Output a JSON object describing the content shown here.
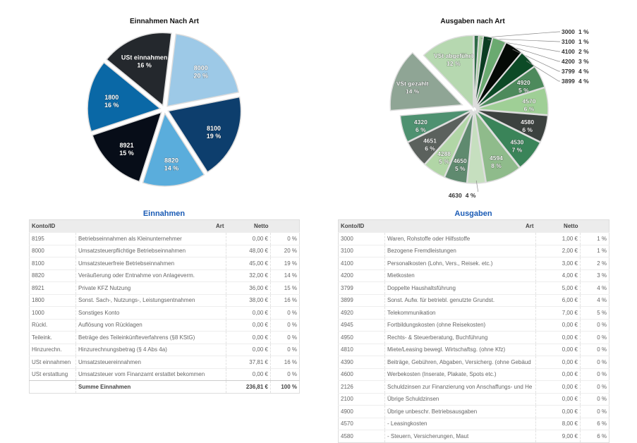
{
  "chart_data": [
    {
      "type": "pie",
      "title": "Einnahmen Nach Art",
      "labels": [
        "8000",
        "8100",
        "8820",
        "8921",
        "1800",
        "USt einnahmen"
      ],
      "values": [
        20,
        19,
        14,
        15,
        16,
        16
      ],
      "value_labels": [
        "20 %",
        "19 %",
        "14 %",
        "15 %",
        "16 %",
        "16 %"
      ],
      "colors": [
        "#9dc9e7",
        "#0d3e6d",
        "#5aaddc",
        "#070d18",
        "#0a68a6",
        "#24282d"
      ]
    },
    {
      "type": "pie",
      "title": "Ausgaben nach Art",
      "labels": [
        "3000",
        "3100",
        "4100",
        "4200",
        "3799",
        "3899",
        "4920",
        "4570",
        "4580",
        "4530",
        "4594",
        "4630",
        "4650",
        "4288",
        "4651",
        "4320",
        "VSt gezahlt",
        "VSt abgeführt"
      ],
      "values": [
        1,
        1,
        2,
        3,
        4,
        4,
        5,
        6,
        6,
        7,
        8,
        4,
        5,
        5,
        6,
        6,
        14,
        12
      ],
      "value_labels": [
        "1 %",
        "1 %",
        "2 %",
        "3 %",
        "4 %",
        "4 %",
        "5 %",
        "6 %",
        "6 %",
        "7 %",
        "8 %",
        "4 %",
        "5 %",
        "5 %",
        "6 %",
        "6 %",
        "14 %",
        "12 %"
      ],
      "colors": [
        "#2e6b46",
        "#a9cfa4",
        "#0b3d22",
        "#6aaa70",
        "#050a06",
        "#0c4a26",
        "#4d8a5c",
        "#9fcf96",
        "#3c423f",
        "#3a8459",
        "#8fbb8b",
        "#c6dfbf",
        "#5f8a6f",
        "#b1d6a6",
        "#5b615d",
        "#4e9170",
        "#8fa595",
        "#b6d8b0"
      ]
    }
  ],
  "einnahmen": {
    "title": "Einnahmen",
    "headers": [
      "Konto/ID",
      "Art",
      "Netto",
      ""
    ],
    "rows": [
      [
        "8195",
        "Betriebseinnahmen als Kleinunternehmer",
        "0,00 €",
        "0 %"
      ],
      [
        "8000",
        "Umsatzsteuerpflichtige Betriebseinnahmen",
        "48,00 €",
        "20 %"
      ],
      [
        "8100",
        "Umsatzsteuerfreie Betriebseinnahmen",
        "45,00 €",
        "19 %"
      ],
      [
        "8820",
        "Veräußerung oder Entnahme von Anlageverm.",
        "32,00 €",
        "14 %"
      ],
      [
        "8921",
        "Private KFZ Nutzung",
        "36,00 €",
        "15 %"
      ],
      [
        "1800",
        "Sonst. Sach-, Nutzungs-, Leistungsentnahmen",
        "38,00 €",
        "16 %"
      ],
      [
        "1000",
        "Sonstiges Konto",
        "0,00 €",
        "0 %"
      ],
      [
        "Rückl.",
        "Auflösung von Rücklagen",
        "0,00 €",
        "0 %"
      ],
      [
        "Teileink.",
        "Beträge des Teileinkünfteverfahrens (§8 KStG)",
        "0,00 €",
        "0 %"
      ],
      [
        "Hinzurechn.",
        "Hinzurechnungsbetrag (§ 4 Abs 4a)",
        "0,00 €",
        "0 %"
      ],
      [
        "USt einnahmen",
        "Umsatzsteuereinnahmen",
        "37,81 €",
        "16 %"
      ],
      [
        "USt erstattung",
        "Umsatzsteuer vom Finanzamt erstattet bekommen",
        "0,00 €",
        "0 %"
      ]
    ],
    "sum": [
      "",
      "Summe Einnahmen",
      "236,81 €",
      "100 %"
    ]
  },
  "ausgaben": {
    "title": "Ausgaben",
    "headers": [
      "Konto/ID",
      "Art",
      "Netto",
      ""
    ],
    "rows": [
      [
        "3000",
        "Waren, Rohstoffe oder Hilfsstoffe",
        "1,00 €",
        "1 %"
      ],
      [
        "3100",
        "Bezogene Fremdleistungen",
        "2,00 €",
        "1 %"
      ],
      [
        "4100",
        "Personalkosten (Lohn, Vers., Reisek. etc.)",
        "3,00 €",
        "2 %"
      ],
      [
        "4200",
        "Mietkosten",
        "4,00 €",
        "3 %"
      ],
      [
        "3799",
        "Doppelte Haushaltsführung",
        "5,00 €",
        "4 %"
      ],
      [
        "3899",
        "Sonst. Aufw. für betriebl. genutzte Grundst.",
        "6,00 €",
        "4 %"
      ],
      [
        "4920",
        "Telekommunikation",
        "7,00 €",
        "5 %"
      ],
      [
        "4945",
        "Fortbildungskosten (ohne Reisekosten)",
        "0,00 €",
        "0 %"
      ],
      [
        "4950",
        "Rechts- & Steuerberatung, Buchführung",
        "0,00 €",
        "0 %"
      ],
      [
        "4810",
        "Miete/Leasing bewegl. Wirtschaftsg. (ohne Kfz)",
        "0,00 €",
        "0 %"
      ],
      [
        "4390",
        "Beiträge, Gebühren, Abgaben, Versicherg. (ohne Gebäud",
        "0,00 €",
        "0 %"
      ],
      [
        "4600",
        "Werbekosten (Inserate, Plakate, Spots etc.)",
        "0,00 €",
        "0 %"
      ],
      [
        "2126",
        "Schuldzinsen zur Finanzierung von Anschaffungs- und He",
        "0,00 €",
        "0 %"
      ],
      [
        "2100",
        "Übrige Schuldzinsen",
        "0,00 €",
        "0 %"
      ],
      [
        "4900",
        "Übrige unbeschr. Betriebsausgaben",
        "0,00 €",
        "0 %"
      ],
      [
        "4570",
        "-  Leasingkosten",
        "8,00 €",
        "6 %"
      ],
      [
        "4580",
        "-  Steuern, Versicherungen, Maut",
        "9,00 €",
        "6 %"
      ]
    ]
  }
}
